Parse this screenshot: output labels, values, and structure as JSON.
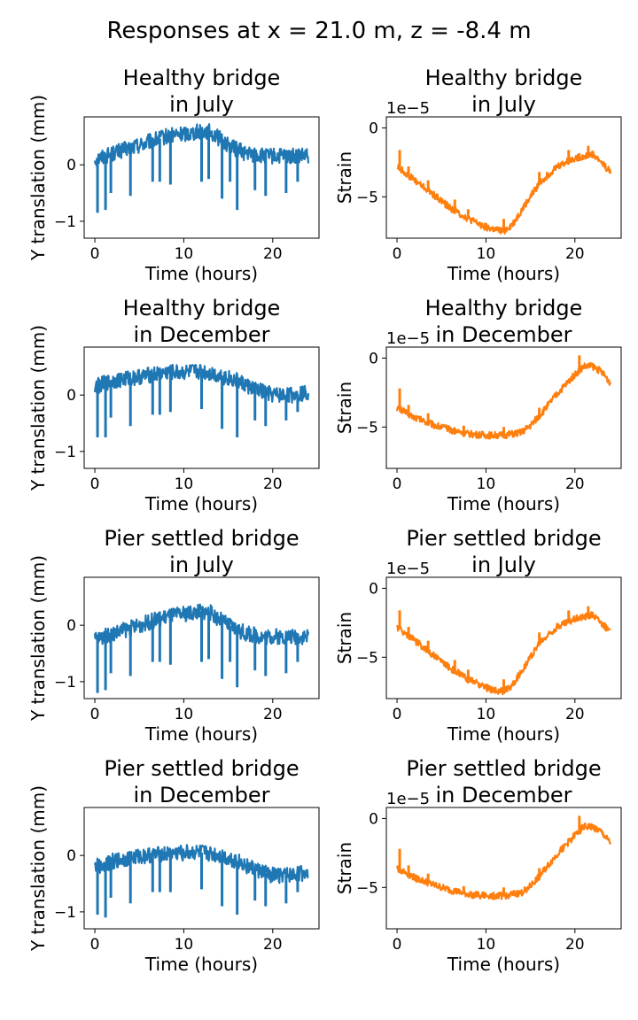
{
  "figure": {
    "suptitle": "Responses at x = 21.0 m, z = -8.4 m"
  },
  "colors": {
    "translation": "#1f77b4",
    "strain": "#ff7f0e"
  },
  "chart_data": [
    {
      "type": "line",
      "title_lines": [
        "Healthy bridge",
        "in July"
      ],
      "xlabel": "Time (hours)",
      "ylabel": "Y translation (mm)",
      "xlim": [
        -1.2,
        25.2
      ],
      "ylim": [
        -1.3,
        0.85
      ],
      "xticks": [
        0,
        10,
        20
      ],
      "yticks": [
        -1,
        0
      ],
      "tick_labels_y": [
        "−1",
        "0"
      ],
      "offset_text": "",
      "series": [
        {
          "x": [
            0,
            2,
            4,
            6,
            8,
            10,
            12,
            13,
            15,
            17,
            19,
            21,
            23,
            24
          ],
          "y": [
            0.1,
            0.2,
            0.3,
            0.4,
            0.5,
            0.55,
            0.6,
            0.58,
            0.35,
            0.2,
            0.15,
            0.15,
            0.15,
            0.15
          ]
        }
      ],
      "spikes": [
        {
          "x": 0.3,
          "y": -0.85
        },
        {
          "x": 1.2,
          "y": -0.8
        },
        {
          "x": 1.8,
          "y": -0.5
        },
        {
          "x": 4.0,
          "y": -0.55
        },
        {
          "x": 6.5,
          "y": -0.3
        },
        {
          "x": 7.3,
          "y": -0.3
        },
        {
          "x": 8.5,
          "y": -0.35
        },
        {
          "x": 12.0,
          "y": -0.3
        },
        {
          "x": 12.8,
          "y": -0.25
        },
        {
          "x": 14.3,
          "y": -0.6
        },
        {
          "x": 15.2,
          "y": -0.3
        },
        {
          "x": 16.0,
          "y": -0.8
        },
        {
          "x": 18.0,
          "y": -0.45
        },
        {
          "x": 19.2,
          "y": -0.55
        },
        {
          "x": 21.5,
          "y": -0.5
        },
        {
          "x": 22.8,
          "y": -0.3
        }
      ]
    },
    {
      "type": "line",
      "title_lines": [
        "Healthy bridge",
        "in July"
      ],
      "xlabel": "Time (hours)",
      "ylabel": "Strain",
      "xlim": [
        -1.2,
        25.2
      ],
      "ylim": [
        -8.0,
        0.8
      ],
      "xticks": [
        0,
        10,
        20
      ],
      "yticks": [
        -5,
        0
      ],
      "tick_labels_y": [
        "−5",
        "0"
      ],
      "offset_text": "1e−5",
      "series": [
        {
          "x": [
            0,
            2,
            4,
            6,
            8,
            10,
            11,
            12,
            13,
            14,
            15,
            16,
            18,
            20,
            22,
            23,
            24
          ],
          "y": [
            -2.8,
            -3.8,
            -4.8,
            -5.8,
            -6.6,
            -7.2,
            -7.4,
            -7.5,
            -7.0,
            -6.0,
            -5.0,
            -4.0,
            -2.8,
            -2.2,
            -1.9,
            -2.5,
            -3.2
          ]
        }
      ],
      "spikes": [
        {
          "x": 0.3,
          "y": -1.6
        },
        {
          "x": 1.3,
          "y": -2.8
        },
        {
          "x": 3.5,
          "y": -3.8
        },
        {
          "x": 6.5,
          "y": -5.2
        },
        {
          "x": 8.0,
          "y": -5.9
        },
        {
          "x": 12.0,
          "y": -6.6
        },
        {
          "x": 16.0,
          "y": -3.2
        },
        {
          "x": 19.3,
          "y": -1.6
        },
        {
          "x": 21.5,
          "y": -1.3
        }
      ]
    },
    {
      "type": "line",
      "title_lines": [
        "Healthy bridge",
        "in December"
      ],
      "xlabel": "Time (hours)",
      "ylabel": "Y translation (mm)",
      "xlim": [
        -1.2,
        25.2
      ],
      "ylim": [
        -1.3,
        0.85
      ],
      "xticks": [
        0,
        10,
        20
      ],
      "yticks": [
        -1,
        0
      ],
      "tick_labels_y": [
        "−1",
        "0"
      ],
      "offset_text": "",
      "series": [
        {
          "x": [
            0,
            2,
            4,
            6,
            8,
            10,
            12,
            14,
            16,
            18,
            20,
            22,
            24
          ],
          "y": [
            0.15,
            0.25,
            0.3,
            0.35,
            0.4,
            0.4,
            0.42,
            0.35,
            0.25,
            0.1,
            0.0,
            0.0,
            0.05
          ]
        }
      ],
      "spikes": [
        {
          "x": 0.3,
          "y": -0.75
        },
        {
          "x": 1.2,
          "y": -0.75
        },
        {
          "x": 1.8,
          "y": -0.4
        },
        {
          "x": 4.0,
          "y": -0.55
        },
        {
          "x": 6.5,
          "y": -0.35
        },
        {
          "x": 7.3,
          "y": -0.35
        },
        {
          "x": 8.5,
          "y": -0.3
        },
        {
          "x": 12.0,
          "y": -0.25
        },
        {
          "x": 14.3,
          "y": -0.6
        },
        {
          "x": 16.0,
          "y": -0.75
        },
        {
          "x": 18.0,
          "y": -0.45
        },
        {
          "x": 19.2,
          "y": -0.55
        },
        {
          "x": 21.5,
          "y": -0.45
        },
        {
          "x": 22.8,
          "y": -0.3
        }
      ]
    },
    {
      "type": "line",
      "title_lines": [
        "Healthy bridge",
        "in December"
      ],
      "xlabel": "Time (hours)",
      "ylabel": "Strain",
      "xlim": [
        -1.2,
        25.2
      ],
      "ylim": [
        -8.0,
        0.8
      ],
      "xticks": [
        0,
        10,
        20
      ],
      "yticks": [
        -5,
        0
      ],
      "tick_labels_y": [
        "−5",
        "0"
      ],
      "offset_text": "1e−5",
      "series": [
        {
          "x": [
            0,
            2,
            4,
            6,
            8,
            10,
            12,
            14,
            15,
            16,
            17,
            18,
            20,
            21,
            22,
            23,
            24
          ],
          "y": [
            -3.6,
            -4.3,
            -4.8,
            -5.2,
            -5.5,
            -5.6,
            -5.6,
            -5.4,
            -4.9,
            -4.2,
            -3.4,
            -2.6,
            -1.2,
            -0.6,
            -0.6,
            -1.0,
            -1.8
          ]
        }
      ],
      "spikes": [
        {
          "x": 0.3,
          "y": -2.2
        },
        {
          "x": 1.3,
          "y": -3.4
        },
        {
          "x": 3.5,
          "y": -4.0
        },
        {
          "x": 7.5,
          "y": -4.9
        },
        {
          "x": 12.0,
          "y": -5.0
        },
        {
          "x": 16.0,
          "y": -3.6
        },
        {
          "x": 20.5,
          "y": 0.2
        }
      ]
    },
    {
      "type": "line",
      "title_lines": [
        "Pier settled bridge",
        "in July"
      ],
      "xlabel": "Time (hours)",
      "ylabel": "Y translation (mm)",
      "xlim": [
        -1.2,
        25.2
      ],
      "ylim": [
        -1.3,
        0.85
      ],
      "xticks": [
        0,
        10,
        20
      ],
      "yticks": [
        -1,
        0
      ],
      "tick_labels_y": [
        "−1",
        "0"
      ],
      "offset_text": "",
      "series": [
        {
          "x": [
            0,
            2,
            4,
            6,
            8,
            10,
            12,
            13,
            15,
            17,
            19,
            21,
            23,
            24
          ],
          "y": [
            -0.25,
            -0.15,
            -0.05,
            0.05,
            0.15,
            0.2,
            0.25,
            0.22,
            0.0,
            -0.15,
            -0.2,
            -0.2,
            -0.2,
            -0.2
          ]
        }
      ],
      "spikes": [
        {
          "x": 0.3,
          "y": -1.2
        },
        {
          "x": 1.2,
          "y": -1.15
        },
        {
          "x": 1.8,
          "y": -0.85
        },
        {
          "x": 4.0,
          "y": -0.9
        },
        {
          "x": 6.5,
          "y": -0.65
        },
        {
          "x": 7.3,
          "y": -0.65
        },
        {
          "x": 8.5,
          "y": -0.7
        },
        {
          "x": 12.0,
          "y": -0.65
        },
        {
          "x": 12.8,
          "y": -0.6
        },
        {
          "x": 14.3,
          "y": -0.95
        },
        {
          "x": 15.2,
          "y": -0.65
        },
        {
          "x": 16.0,
          "y": -1.1
        },
        {
          "x": 18.0,
          "y": -0.8
        },
        {
          "x": 19.2,
          "y": -0.9
        },
        {
          "x": 21.5,
          "y": -0.85
        },
        {
          "x": 22.8,
          "y": -0.65
        }
      ]
    },
    {
      "type": "line",
      "title_lines": [
        "Pier settled bridge",
        "in July"
      ],
      "xlabel": "Time (hours)",
      "ylabel": "Strain",
      "xlim": [
        -1.2,
        25.2
      ],
      "ylim": [
        -8.0,
        0.8
      ],
      "xticks": [
        0,
        10,
        20
      ],
      "yticks": [
        -5,
        0
      ],
      "tick_labels_y": [
        "−5",
        "0"
      ],
      "offset_text": "1e−5",
      "series": [
        {
          "x": [
            0,
            2,
            4,
            6,
            8,
            10,
            11,
            12,
            13,
            14,
            15,
            16,
            18,
            20,
            22,
            23,
            24
          ],
          "y": [
            -2.8,
            -3.8,
            -4.8,
            -5.8,
            -6.6,
            -7.2,
            -7.4,
            -7.5,
            -7.0,
            -6.0,
            -5.0,
            -4.0,
            -2.8,
            -2.2,
            -1.9,
            -2.5,
            -3.2
          ]
        }
      ],
      "spikes": [
        {
          "x": 0.3,
          "y": -1.6
        },
        {
          "x": 1.3,
          "y": -2.8
        },
        {
          "x": 3.5,
          "y": -3.8
        },
        {
          "x": 6.5,
          "y": -5.2
        },
        {
          "x": 8.0,
          "y": -5.9
        },
        {
          "x": 12.0,
          "y": -6.6
        },
        {
          "x": 16.0,
          "y": -3.2
        },
        {
          "x": 19.3,
          "y": -1.6
        },
        {
          "x": 21.5,
          "y": -1.3
        }
      ]
    },
    {
      "type": "line",
      "title_lines": [
        "Pier settled bridge",
        "in December"
      ],
      "xlabel": "Time (hours)",
      "ylabel": "Y translation (mm)",
      "xlim": [
        -1.2,
        25.2
      ],
      "ylim": [
        -1.3,
        0.85
      ],
      "xticks": [
        0,
        10,
        20
      ],
      "yticks": [
        -1,
        0
      ],
      "tick_labels_y": [
        "−1",
        "0"
      ],
      "offset_text": "",
      "series": [
        {
          "x": [
            0,
            2,
            4,
            6,
            8,
            10,
            12,
            14,
            16,
            18,
            20,
            22,
            24
          ],
          "y": [
            -0.2,
            -0.1,
            -0.05,
            0.0,
            0.02,
            0.05,
            0.05,
            0.0,
            -0.1,
            -0.25,
            -0.35,
            -0.35,
            -0.3
          ]
        }
      ],
      "spikes": [
        {
          "x": 0.3,
          "y": -1.05
        },
        {
          "x": 1.2,
          "y": -1.1
        },
        {
          "x": 1.8,
          "y": -0.75
        },
        {
          "x": 4.0,
          "y": -0.85
        },
        {
          "x": 6.5,
          "y": -0.65
        },
        {
          "x": 7.3,
          "y": -0.65
        },
        {
          "x": 8.5,
          "y": -0.65
        },
        {
          "x": 12.0,
          "y": -0.6
        },
        {
          "x": 14.3,
          "y": -0.9
        },
        {
          "x": 16.0,
          "y": -1.05
        },
        {
          "x": 18.0,
          "y": -0.8
        },
        {
          "x": 19.2,
          "y": -0.9
        },
        {
          "x": 21.5,
          "y": -0.85
        },
        {
          "x": 22.8,
          "y": -0.65
        }
      ]
    },
    {
      "type": "line",
      "title_lines": [
        "Pier settled bridge",
        "in December"
      ],
      "xlabel": "Time (hours)",
      "ylabel": "Strain",
      "xlim": [
        -1.2,
        25.2
      ],
      "ylim": [
        -8.0,
        0.8
      ],
      "xticks": [
        0,
        10,
        20
      ],
      "yticks": [
        -5,
        0
      ],
      "tick_labels_y": [
        "−5",
        "0"
      ],
      "offset_text": "1e−5",
      "series": [
        {
          "x": [
            0,
            2,
            4,
            6,
            8,
            10,
            12,
            14,
            15,
            16,
            17,
            18,
            20,
            21,
            22,
            23,
            24
          ],
          "y": [
            -3.6,
            -4.3,
            -4.8,
            -5.2,
            -5.5,
            -5.6,
            -5.6,
            -5.4,
            -4.9,
            -4.2,
            -3.4,
            -2.6,
            -1.2,
            -0.6,
            -0.6,
            -1.0,
            -1.8
          ]
        }
      ],
      "spikes": [
        {
          "x": 0.3,
          "y": -2.2
        },
        {
          "x": 1.3,
          "y": -3.4
        },
        {
          "x": 3.5,
          "y": -4.0
        },
        {
          "x": 7.5,
          "y": -4.9
        },
        {
          "x": 12.0,
          "y": -5.0
        },
        {
          "x": 16.0,
          "y": -3.6
        },
        {
          "x": 20.5,
          "y": 0.2
        }
      ]
    }
  ]
}
